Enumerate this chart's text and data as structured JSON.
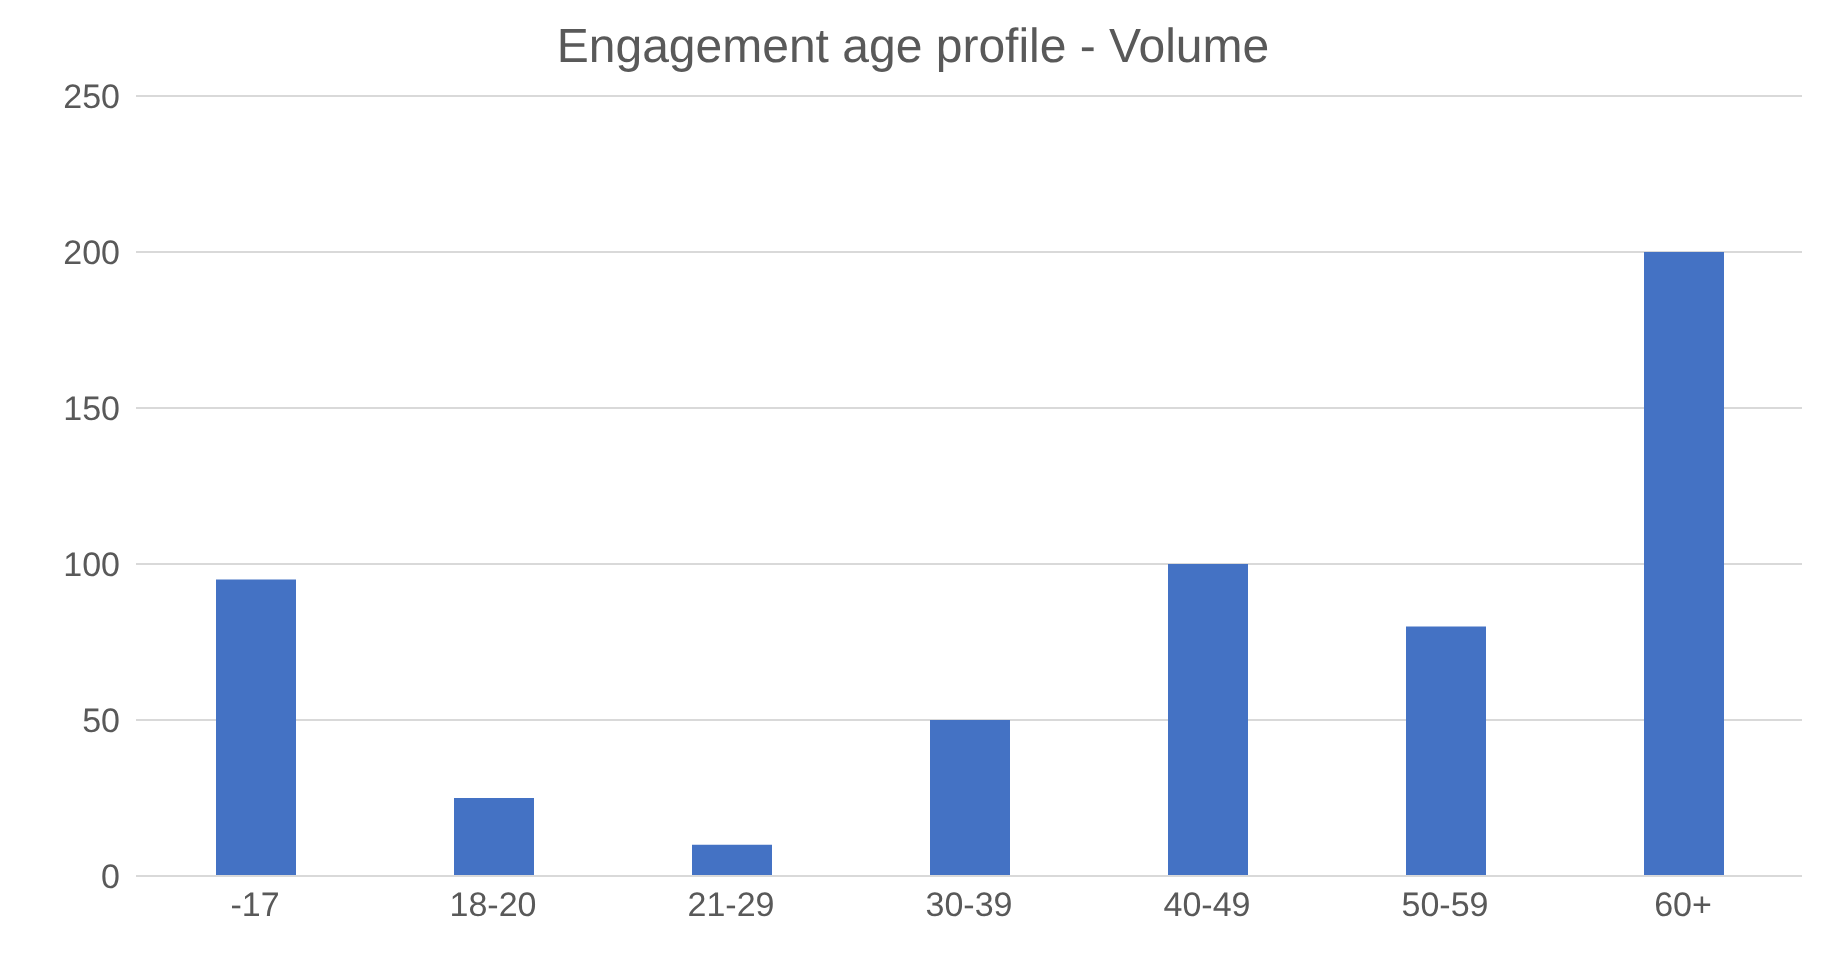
{
  "chart_data": {
    "type": "bar",
    "title": "Engagement age profile - Volume",
    "categories": [
      "-17",
      "18-20",
      "21-29",
      "30-39",
      "40-49",
      "50-59",
      "60+"
    ],
    "values": [
      95,
      25,
      10,
      50,
      100,
      80,
      200
    ],
    "color": "#4472c4",
    "ylim": [
      0,
      250
    ],
    "yticks": [
      0,
      50,
      100,
      150,
      200,
      250
    ],
    "grid": "y"
  }
}
